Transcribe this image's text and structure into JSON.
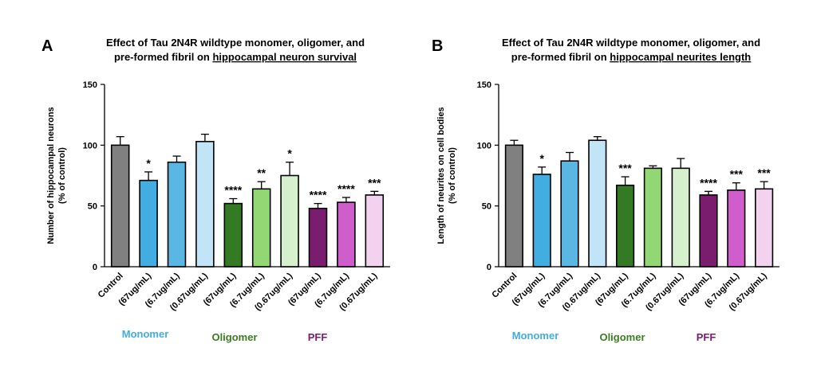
{
  "colors": {
    "control": "#808080",
    "monomer": [
      "#41ade0",
      "#5ab7e4",
      "#c1e5f6"
    ],
    "oligomer": [
      "#347a24",
      "#93d674",
      "#d6efcc"
    ],
    "pff": [
      "#7b1d6e",
      "#cf5dcb",
      "#f3d2f0"
    ],
    "monomer_text": "#41ade0",
    "oligomer_text": "#3b7d23",
    "pff_text": "#7b1d6e"
  },
  "groups": {
    "monomer": "Monomer",
    "oligomer": "Oligomer",
    "pff": "PFF"
  },
  "chart_data": [
    {
      "panel": "A",
      "type": "bar",
      "title_line1": "Effect of Tau 2N4R wildtype monomer, oligomer, and",
      "title_line2_prefix": "pre-formed fibril on ",
      "title_line2_underlined": "hippocampal neuron survival",
      "ylabel_line1": "Number of hippocampal neurons",
      "ylabel_line2": "(% of control)",
      "ylim": [
        0,
        150
      ],
      "yticks": [
        "0",
        "50",
        "100",
        "150"
      ],
      "categories": [
        "Control",
        "(67ug/mL)",
        "(6.7ug/mL)",
        "(0.67ug/mL)",
        "(67ug/mL)",
        "(6.7ug/mL)",
        "(0.67ug/mL)",
        "(67ug/mL)",
        "(6.7ug/mL)",
        "(0.67ug/mL)"
      ],
      "values": [
        100,
        71,
        86,
        103,
        52,
        64,
        75,
        48,
        53,
        59
      ],
      "errors": [
        7,
        7,
        5,
        6,
        4,
        6,
        11,
        4,
        4,
        3
      ],
      "significance": [
        "",
        "*",
        "",
        "",
        "****",
        "**",
        "*",
        "****",
        "****",
        "***"
      ]
    },
    {
      "panel": "B",
      "type": "bar",
      "title_line1": "Effect of Tau 2N4R wildtype monomer, oligomer, and",
      "title_line2_prefix": "pre-formed fibril on ",
      "title_line2_underlined": "hippocampal neurites length",
      "ylabel_line1": "Length of neurites on cell bodies",
      "ylabel_line2": "(% of control)",
      "ylim": [
        0,
        150
      ],
      "yticks": [
        "0",
        "50",
        "100",
        "150"
      ],
      "categories": [
        "Control",
        "(67ug/mL)",
        "(6.7ug/mL)",
        "(0.67ug/mL)",
        "(67ug/mL)",
        "(6.7ug/mL)",
        "(0.67ug/mL)",
        "(67ug/mL)",
        "(6.7ug/mL)",
        "(0.67ug/mL)"
      ],
      "values": [
        100,
        76,
        87,
        104,
        67,
        81,
        81,
        59,
        63,
        64
      ],
      "errors": [
        4,
        6,
        7,
        3,
        7,
        2,
        8,
        3,
        6,
        6
      ],
      "significance": [
        "",
        "*",
        "",
        "",
        "***",
        "",
        "",
        "****",
        "***",
        "***"
      ]
    }
  ]
}
